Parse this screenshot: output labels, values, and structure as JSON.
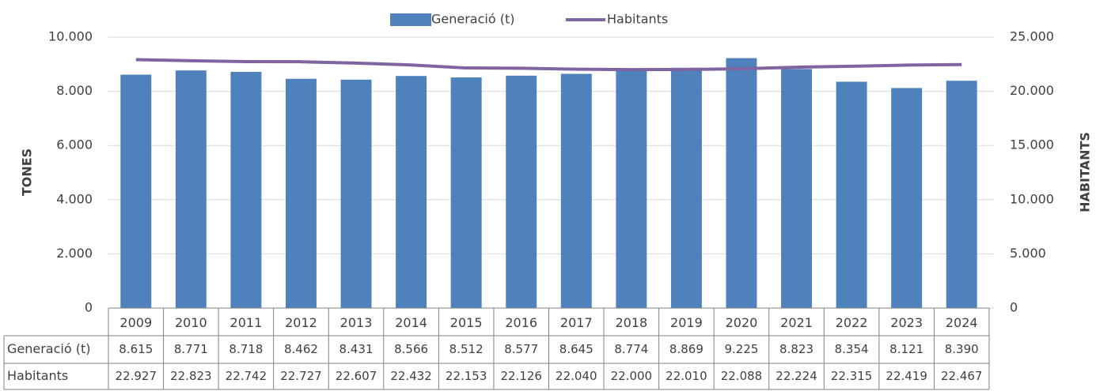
{
  "chart_data": {
    "type": "bar",
    "y_label": "TONES",
    "y2_label": "HABITANTS",
    "categories": [
      "2009",
      "2010",
      "2011",
      "2012",
      "2013",
      "2014",
      "2015",
      "2016",
      "2017",
      "2018",
      "2019",
      "2020",
      "2021",
      "2022",
      "2023",
      "2024"
    ],
    "series": [
      {
        "name": "Generació (t)",
        "type": "bar",
        "color": "#4f81bd",
        "values": [
          8615,
          8771,
          8718,
          8462,
          8431,
          8566,
          8512,
          8577,
          8645,
          8774,
          8869,
          9225,
          8823,
          8354,
          8121,
          8390
        ],
        "value_labels": [
          "8.615",
          "8.771",
          "8.718",
          "8.462",
          "8.431",
          "8.566",
          "8.512",
          "8.577",
          "8.645",
          "8.774",
          "8.869",
          "9.225",
          "8.823",
          "8.354",
          "8.121",
          "8.390"
        ]
      },
      {
        "name": "Habitants",
        "type": "line",
        "axis": "y2",
        "color": "#8064a2",
        "values": [
          22927,
          22823,
          22742,
          22727,
          22607,
          22432,
          22153,
          22126,
          22040,
          22000,
          22010,
          22088,
          22224,
          22315,
          22419,
          22467
        ],
        "value_labels": [
          "22.927",
          "22.823",
          "22.742",
          "22.727",
          "22.607",
          "22.432",
          "22.153",
          "22.126",
          "22.040",
          "22.000",
          "22.010",
          "22.088",
          "22.224",
          "22.315",
          "22.419",
          "22.467"
        ]
      }
    ],
    "ylim": [
      0,
      10000
    ],
    "yticks": [
      0,
      {
        "value": 2000,
        "label": "2.000"
      },
      {
        "value": 4000,
        "label": "4.000"
      },
      {
        "value": 6000,
        "label": "6.000"
      },
      {
        "value": 8000,
        "label": "8.000"
      },
      {
        "value": 10000,
        "label": "10.000"
      }
    ],
    "y2lim": [
      0,
      25000
    ],
    "y2ticks": [
      0,
      {
        "value": 5000,
        "label": "5.000"
      },
      {
        "value": 10000,
        "label": "10.000"
      },
      {
        "value": 15000,
        "label": "15.000"
      },
      {
        "value": 20000,
        "label": "20.000"
      },
      {
        "value": 25000,
        "label": "25.000"
      }
    ],
    "grid": true,
    "legend": "top",
    "data_table": true
  }
}
